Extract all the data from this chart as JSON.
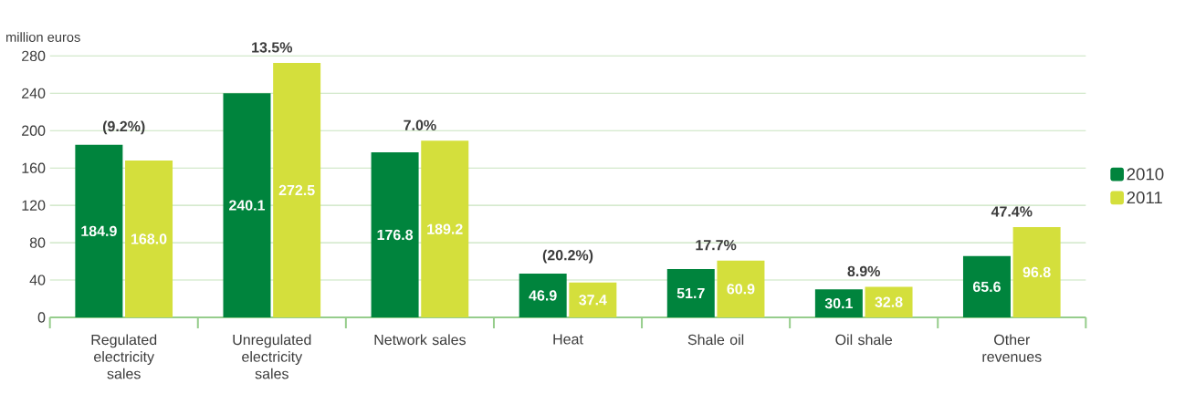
{
  "chart_data": {
    "type": "bar",
    "ylabel": "million euros",
    "categories": [
      "Regulated electricity sales",
      "Unregulated electricity sales",
      "Network sales",
      "Heat",
      "Shale oil",
      "Oil shale",
      "Other revenues"
    ],
    "series": [
      {
        "name": "2010",
        "color": "#00843d",
        "values": [
          184.9,
          240.1,
          176.8,
          46.9,
          51.7,
          30.1,
          65.6
        ],
        "value_labels": [
          "184.9",
          "240.1",
          "176.8",
          "46.9",
          "51.7",
          "30.1",
          "65.6"
        ]
      },
      {
        "name": "2011",
        "color": "#d4df3c",
        "values": [
          168.0,
          272.5,
          189.2,
          37.4,
          60.9,
          32.8,
          96.8
        ],
        "value_labels": [
          "168.0",
          "272.5",
          "189.2",
          "37.4",
          "60.9",
          "32.8",
          "96.8"
        ]
      }
    ],
    "ylim": [
      0,
      280
    ],
    "yticks": [
      0,
      40,
      80,
      120,
      160,
      200,
      240,
      280
    ],
    "grid": "y",
    "legend": "right",
    "annotations": [
      {
        "text": "(9.2%)",
        "x": "Regulated electricity sales",
        "y": 184.9
      },
      {
        "text": "13.5%",
        "x": "Unregulated electricity sales",
        "y": 272.5
      },
      {
        "text": "7.0%",
        "x": "Network sales",
        "y": 189.2
      },
      {
        "text": "(20.2%)",
        "x": "Heat",
        "y": 46.9
      },
      {
        "text": "17.7%",
        "x": "Shale oil",
        "y": 60.9
      },
      {
        "text": "8.9%",
        "x": "Oil shale",
        "y": 32.8
      },
      {
        "text": "47.4%",
        "x": "Other revenues",
        "y": 96.8
      }
    ]
  }
}
